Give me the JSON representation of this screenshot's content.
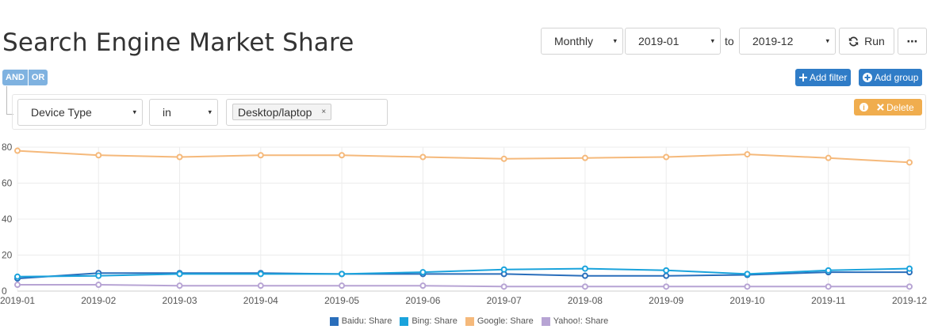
{
  "page": {
    "title": "Search Engine Market Share"
  },
  "controls": {
    "interval": "Monthly",
    "from": "2019-01",
    "to_label": "to",
    "to": "2019-12",
    "run_label": "Run",
    "more_label": "⋯",
    "caret": "▾"
  },
  "filter": {
    "and_label": "AND",
    "or_label": "OR",
    "add_filter": "Add filter",
    "add_group": "Add group",
    "field": "Device Type",
    "operator": "in",
    "value_tag": "Desktop/laptop",
    "tag_remove": "×",
    "delete_label": "Delete"
  },
  "colors": {
    "baidu": "#2a6ebb",
    "bing": "#1aa3dc",
    "google": "#f5b97b",
    "yahoo": "#b7a4d4"
  },
  "chart_data": {
    "type": "line",
    "x": [
      "2019-01",
      "2019-02",
      "2019-03",
      "2019-04",
      "2019-05",
      "2019-06",
      "2019-07",
      "2019-08",
      "2019-09",
      "2019-10",
      "2019-11",
      "2019-12"
    ],
    "ylim": [
      0,
      80
    ],
    "yticks": [
      0,
      20,
      40,
      60,
      80
    ],
    "grid": true,
    "legend_position": "bottom",
    "series": [
      {
        "name": "Baidu: Share",
        "color": "#2a6ebb",
        "values": [
          7,
          10,
          10,
          10,
          9.5,
          9.5,
          9.5,
          8.5,
          8.5,
          9,
          10.5,
          10.5
        ]
      },
      {
        "name": "Bing: Share",
        "color": "#1aa3dc",
        "values": [
          8,
          8.5,
          9.5,
          9.5,
          9.5,
          10.5,
          12,
          12.5,
          11.5,
          9.5,
          11.5,
          12.5
        ]
      },
      {
        "name": "Google: Share",
        "color": "#f5b97b",
        "values": [
          78,
          75.5,
          74.5,
          75.5,
          75.5,
          74.5,
          73.5,
          74,
          74.5,
          76,
          74,
          71.5
        ]
      },
      {
        "name": "Yahoo!: Share",
        "color": "#b7a4d4",
        "values": [
          3.5,
          3.5,
          3,
          3,
          3,
          3,
          2.5,
          2.5,
          2.5,
          2.5,
          2.5,
          2.5
        ]
      }
    ]
  }
}
